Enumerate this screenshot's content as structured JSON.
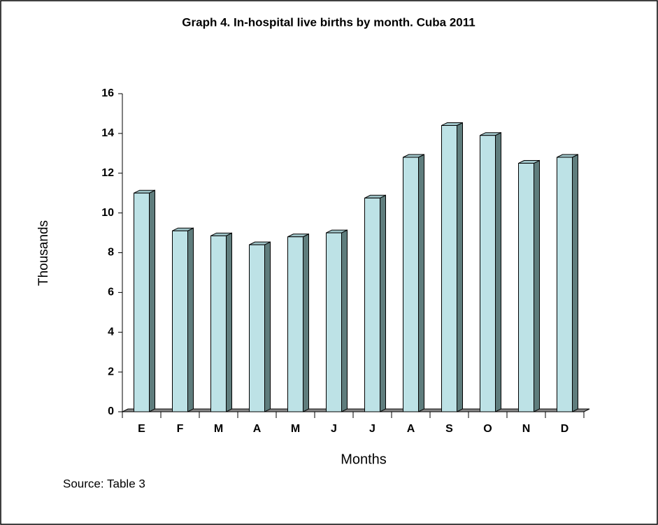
{
  "chart_data": {
    "type": "bar3d",
    "title": "Graph 4. In-hospital live births by month. Cuba 2011",
    "xlabel": "Months",
    "ylabel": "Thousands",
    "source": "Source: Table 3",
    "categories": [
      "E",
      "F",
      "M",
      "A",
      "M",
      "J",
      "J",
      "A",
      "S",
      "O",
      "N",
      "D"
    ],
    "values": [
      11.0,
      9.1,
      8.85,
      8.4,
      8.8,
      9.0,
      10.75,
      12.8,
      14.4,
      13.9,
      12.5,
      12.8
    ],
    "color": "#bde2e6",
    "side_color": "#5f7d7d",
    "ylim": [
      0,
      16
    ],
    "yticks": [
      0,
      2,
      4,
      6,
      8,
      10,
      12,
      14,
      16
    ]
  }
}
